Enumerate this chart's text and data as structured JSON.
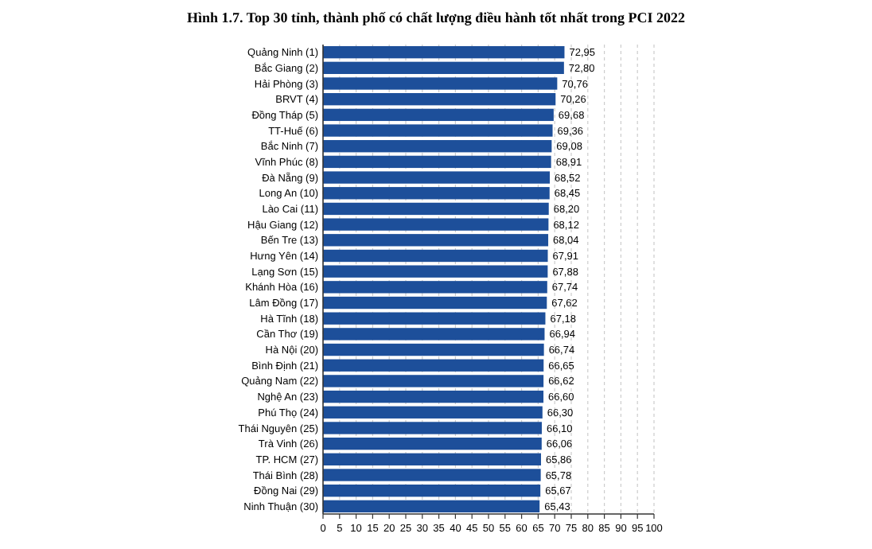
{
  "chart_data": {
    "type": "bar",
    "orientation": "horizontal",
    "title": "Hình 1.7. Top 30 tỉnh, thành phố có chất lượng điều hành tốt nhất trong PCI 2022",
    "categories": [
      "Quảng Ninh (1)",
      "Bắc Giang (2)",
      "Hải Phòng (3)",
      "BRVT (4)",
      "Đồng Tháp (5)",
      "TT-Huế (6)",
      "Bắc Ninh (7)",
      "Vĩnh Phúc (8)",
      "Đà Nẵng (9)",
      "Long An (10)",
      "Lào Cai (11)",
      "Hậu Giang (12)",
      "Bến Tre (13)",
      "Hưng Yên (14)",
      "Lạng Sơn (15)",
      "Khánh Hòa (16)",
      "Lâm Đồng (17)",
      "Hà Tĩnh (18)",
      "Cần Thơ (19)",
      "Hà Nội (20)",
      "Bình Định (21)",
      "Quảng Nam (22)",
      "Nghệ An (23)",
      "Phú Thọ (24)",
      "Thái Nguyên (25)",
      "Trà Vinh (26)",
      "TP. HCM (27)",
      "Thái Bình (28)",
      "Đồng Nai (29)",
      "Ninh Thuận (30)"
    ],
    "values": [
      72.95,
      72.8,
      70.76,
      70.26,
      69.68,
      69.36,
      69.08,
      68.91,
      68.52,
      68.45,
      68.2,
      68.12,
      68.04,
      67.91,
      67.88,
      67.74,
      67.62,
      67.18,
      66.94,
      66.74,
      66.65,
      66.62,
      66.6,
      66.3,
      66.1,
      66.06,
      65.86,
      65.78,
      65.67,
      65.43
    ],
    "value_labels": [
      "72,95",
      "72,80",
      "70,76",
      "70,26",
      "69,68",
      "69,36",
      "69,08",
      "68,91",
      "68,52",
      "68,45",
      "68,20",
      "68,12",
      "68,04",
      "67,91",
      "67,88",
      "67,74",
      "67,62",
      "67,18",
      "66,94",
      "66,74",
      "66,65",
      "66,62",
      "66,60",
      "66,30",
      "66,10",
      "66,06",
      "65,86",
      "65,78",
      "65,67",
      "65,43"
    ],
    "color": "#1d4f9a",
    "xlim": [
      0,
      100
    ],
    "xticks": [
      0,
      5,
      10,
      15,
      20,
      25,
      30,
      35,
      40,
      45,
      50,
      55,
      60,
      65,
      70,
      75,
      80,
      85,
      90,
      95,
      100
    ],
    "grid": "x"
  }
}
